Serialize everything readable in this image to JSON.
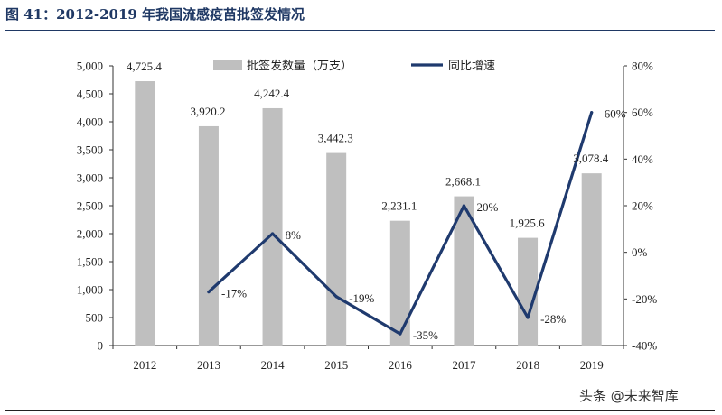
{
  "title": "图 41：2012-2019 年我国流感疫苗批签发情况",
  "watermark": "头条 @未来智库",
  "chart_data": {
    "type": "bar+line",
    "categories": [
      "2012",
      "2013",
      "2014",
      "2015",
      "2016",
      "2017",
      "2018",
      "2019"
    ],
    "series": [
      {
        "name": "批签发数量（万支）",
        "type": "bar",
        "axis": "left",
        "color": "#bfbfbf",
        "values": [
          4725.4,
          3920.2,
          4242.4,
          3442.3,
          2231.1,
          2668.1,
          1925.6,
          3078.4
        ],
        "labels": [
          "4,725.4",
          "3,920.2",
          "4,242.4",
          "3,442.3",
          "2,231.1",
          "2,668.1",
          "1,925.6",
          "3,078.4"
        ]
      },
      {
        "name": "同比增速",
        "type": "line",
        "axis": "right",
        "color": "#1f3a6e",
        "values": [
          null,
          -17,
          8,
          -19,
          -35,
          20,
          -28,
          60
        ],
        "labels": [
          "",
          "-17%",
          "8%",
          "-19%",
          "-35%",
          "20%",
          "-28%",
          "60%"
        ]
      }
    ],
    "y_left": {
      "min": 0,
      "max": 5000,
      "step": 500,
      "ticks": [
        "0",
        "500",
        "1,000",
        "1,500",
        "2,000",
        "2,500",
        "3,000",
        "3,500",
        "4,000",
        "4,500",
        "5,000"
      ]
    },
    "y_right": {
      "min": -40,
      "max": 80,
      "step": 20,
      "ticks": [
        "-40%",
        "-20%",
        "0%",
        "20%",
        "40%",
        "60%",
        "80%"
      ]
    },
    "legend": "top-center",
    "grid": false
  }
}
